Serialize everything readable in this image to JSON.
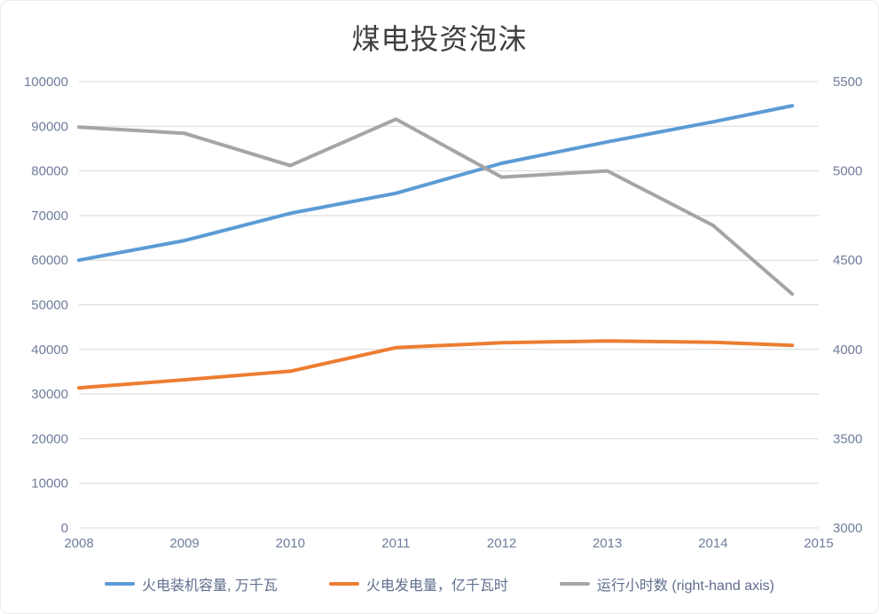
{
  "chart_data": {
    "type": "line",
    "title": "煤电投资泡沫",
    "x_labels": [
      "2008",
      "2009",
      "2010",
      "2011",
      "2012",
      "2013",
      "2014",
      "2015"
    ],
    "x_plot": [
      2008,
      2009,
      2010,
      2011,
      2012,
      2013,
      2014,
      2014.75
    ],
    "series": [
      {
        "name": "火电装机容量, 万千瓦",
        "axis": "left",
        "color": "#5b9bd5",
        "values": [
          60000,
          64400,
          70500,
          75000,
          81700,
          86500,
          91000,
          94600
        ]
      },
      {
        "name": "火电发电量，亿千瓦时",
        "axis": "left",
        "color": "#ed7d31",
        "values": [
          31400,
          33200,
          35100,
          40400,
          41500,
          41900,
          41600,
          40900
        ]
      },
      {
        "name": "运行小时数 (right-hand axis)",
        "axis": "right",
        "color": "#a5a5a5",
        "values": [
          5245,
          5210,
          5030,
          5290,
          4965,
          5000,
          4695,
          4310
        ]
      }
    ],
    "left_axis": {
      "min": 0,
      "max": 100000,
      "ticks": [
        0,
        10000,
        20000,
        30000,
        40000,
        50000,
        60000,
        70000,
        80000,
        90000,
        100000
      ]
    },
    "right_axis": {
      "min": 3000,
      "max": 5500,
      "ticks": [
        3000,
        3500,
        4000,
        4500,
        5000,
        5500
      ]
    },
    "x_axis": {
      "min": 2008,
      "max": 2015
    },
    "grid": true,
    "legend_position": "bottom",
    "colors": {
      "gridline": "#d9d9d9",
      "tick_label": "#6f7d9c",
      "title_text": "#3f3f3f",
      "legend_text": "#5f6e8e"
    }
  }
}
